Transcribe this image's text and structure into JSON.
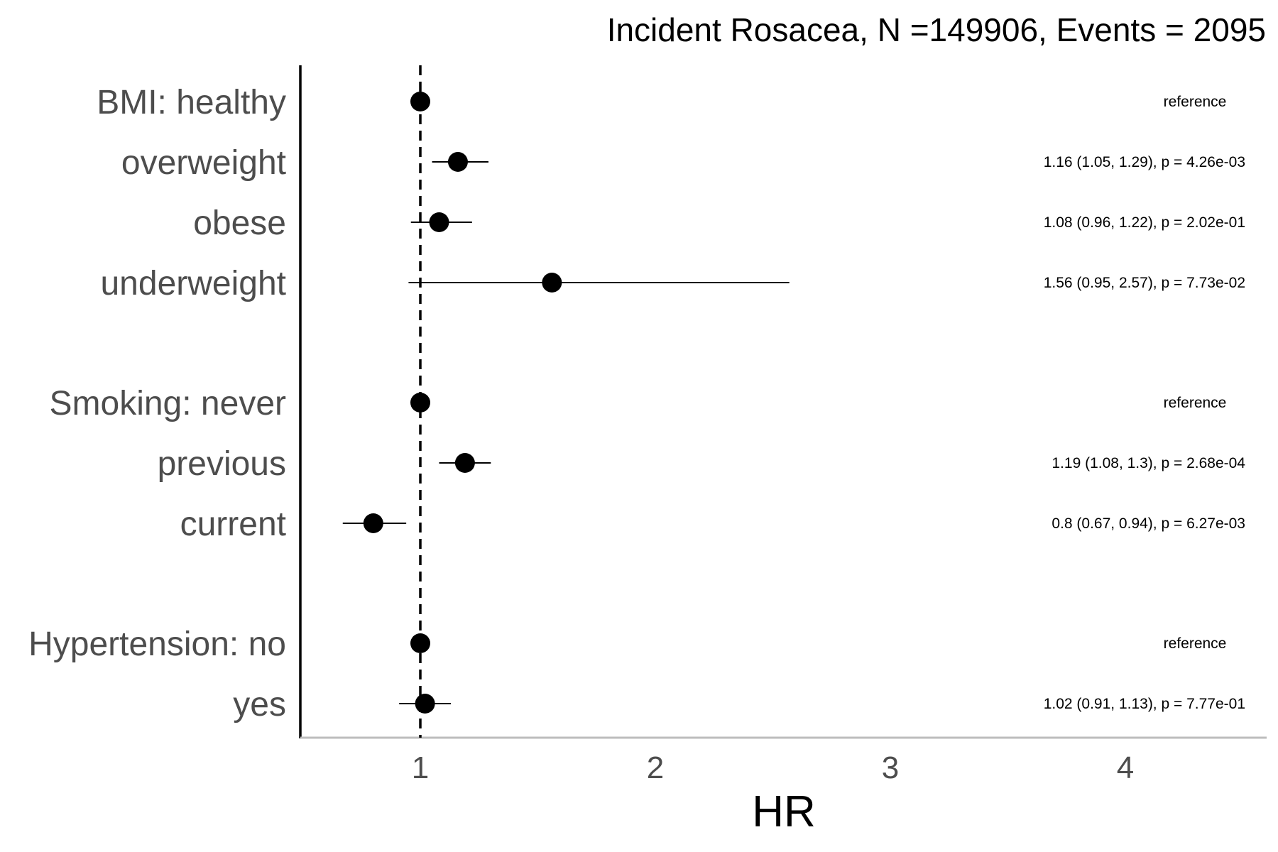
{
  "chart_data": {
    "type": "forest",
    "title": "Incident Rosacea, N =149906, Events = 2095",
    "xlabel": "HR",
    "xlim": [
      0.5,
      4.6
    ],
    "xticks": [
      1,
      2,
      3,
      4
    ],
    "reference_line": 1,
    "rows": [
      {
        "label": "BMI: healthy",
        "hr": 1.0,
        "lo": null,
        "hi": null,
        "annotation": "reference"
      },
      {
        "label": "overweight",
        "hr": 1.16,
        "lo": 1.05,
        "hi": 1.29,
        "annotation": "1.16 (1.05, 1.29), p = 4.26e-03"
      },
      {
        "label": "obese",
        "hr": 1.08,
        "lo": 0.96,
        "hi": 1.22,
        "annotation": "1.08 (0.96, 1.22), p = 2.02e-01"
      },
      {
        "label": "underweight",
        "hr": 1.56,
        "lo": 0.95,
        "hi": 2.57,
        "annotation": "1.56 (0.95, 2.57), p = 7.73e-02"
      },
      {
        "label": "Smoking: never",
        "hr": 1.0,
        "lo": null,
        "hi": null,
        "annotation": "reference"
      },
      {
        "label": "previous",
        "hr": 1.19,
        "lo": 1.08,
        "hi": 1.3,
        "annotation": "1.19 (1.08, 1.3), p = 2.68e-04"
      },
      {
        "label": "current",
        "hr": 0.8,
        "lo": 0.67,
        "hi": 0.94,
        "annotation": "0.8 (0.67, 0.94), p = 6.27e-03"
      },
      {
        "label": "Hypertension: no",
        "hr": 1.0,
        "lo": null,
        "hi": null,
        "annotation": "reference"
      },
      {
        "label": "yes",
        "hr": 1.02,
        "lo": 0.91,
        "hi": 1.13,
        "annotation": "1.02 (0.91, 1.13), p = 7.77e-01"
      }
    ]
  }
}
